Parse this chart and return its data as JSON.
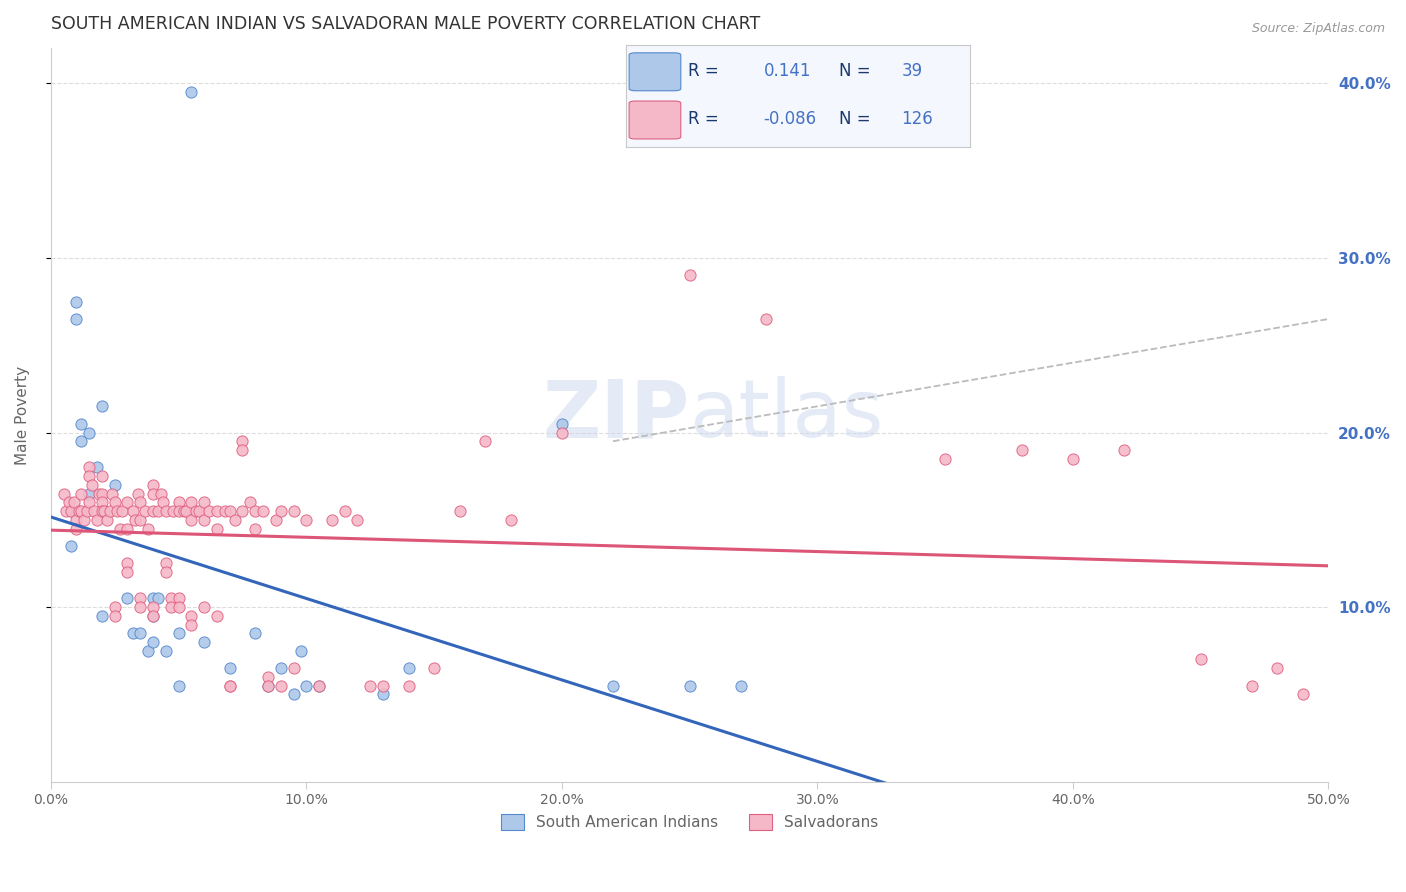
{
  "title": "SOUTH AMERICAN INDIAN VS SALVADORAN MALE POVERTY CORRELATION CHART",
  "source": "Source: ZipAtlas.com",
  "ylabel": "Male Poverty",
  "watermark": "ZIPatlas",
  "blue_r": "0.141",
  "blue_n": "39",
  "pink_r": "-0.086",
  "pink_n": "126",
  "blue_color": "#adc8e8",
  "pink_color": "#f5b8c8",
  "blue_edge_color": "#5588cc",
  "pink_edge_color": "#e06080",
  "blue_line_color": "#3366bb",
  "pink_line_color": "#dd5577",
  "dash_line_color": "#bbbbbb",
  "blue_scatter": [
    [
      0.8,
      15.5
    ],
    [
      0.8,
      13.5
    ],
    [
      1.0,
      27.5
    ],
    [
      1.0,
      26.5
    ],
    [
      1.2,
      20.5
    ],
    [
      1.2,
      19.5
    ],
    [
      1.5,
      20.0
    ],
    [
      1.5,
      16.5
    ],
    [
      1.8,
      18.0
    ],
    [
      2.0,
      21.5
    ],
    [
      2.0,
      9.5
    ],
    [
      2.5,
      17.0
    ],
    [
      3.0,
      10.5
    ],
    [
      3.2,
      8.5
    ],
    [
      3.5,
      8.5
    ],
    [
      3.8,
      7.5
    ],
    [
      4.0,
      8.0
    ],
    [
      4.0,
      9.5
    ],
    [
      4.0,
      10.5
    ],
    [
      4.2,
      10.5
    ],
    [
      4.5,
      7.5
    ],
    [
      5.0,
      8.5
    ],
    [
      5.0,
      5.5
    ],
    [
      5.5,
      39.5
    ],
    [
      6.0,
      8.0
    ],
    [
      7.0,
      6.5
    ],
    [
      8.0,
      8.5
    ],
    [
      8.5,
      5.5
    ],
    [
      9.0,
      6.5
    ],
    [
      9.5,
      5.0
    ],
    [
      9.8,
      7.5
    ],
    [
      10.0,
      5.5
    ],
    [
      10.5,
      5.5
    ],
    [
      13.0,
      5.0
    ],
    [
      14.0,
      6.5
    ],
    [
      20.0,
      20.5
    ],
    [
      22.0,
      5.5
    ],
    [
      25.0,
      5.5
    ],
    [
      27.0,
      5.5
    ]
  ],
  "pink_scatter": [
    [
      0.5,
      16.5
    ],
    [
      0.6,
      15.5
    ],
    [
      0.7,
      16.0
    ],
    [
      0.8,
      15.5
    ],
    [
      0.9,
      16.0
    ],
    [
      1.0,
      15.0
    ],
    [
      1.0,
      14.5
    ],
    [
      1.1,
      15.5
    ],
    [
      1.2,
      16.5
    ],
    [
      1.2,
      15.5
    ],
    [
      1.3,
      15.0
    ],
    [
      1.4,
      15.5
    ],
    [
      1.5,
      18.0
    ],
    [
      1.5,
      17.5
    ],
    [
      1.5,
      16.0
    ],
    [
      1.6,
      17.0
    ],
    [
      1.7,
      15.5
    ],
    [
      1.8,
      15.0
    ],
    [
      1.9,
      16.5
    ],
    [
      2.0,
      17.5
    ],
    [
      2.0,
      16.5
    ],
    [
      2.0,
      16.0
    ],
    [
      2.0,
      15.5
    ],
    [
      2.1,
      15.5
    ],
    [
      2.2,
      15.0
    ],
    [
      2.3,
      15.5
    ],
    [
      2.4,
      16.5
    ],
    [
      2.5,
      16.0
    ],
    [
      2.5,
      10.0
    ],
    [
      2.5,
      9.5
    ],
    [
      2.6,
      15.5
    ],
    [
      2.7,
      14.5
    ],
    [
      2.8,
      15.5
    ],
    [
      3.0,
      16.0
    ],
    [
      3.0,
      14.5
    ],
    [
      3.0,
      12.5
    ],
    [
      3.0,
      12.0
    ],
    [
      3.2,
      15.5
    ],
    [
      3.3,
      15.0
    ],
    [
      3.4,
      16.5
    ],
    [
      3.5,
      16.0
    ],
    [
      3.5,
      15.0
    ],
    [
      3.5,
      10.5
    ],
    [
      3.5,
      10.0
    ],
    [
      3.7,
      15.5
    ],
    [
      3.8,
      14.5
    ],
    [
      4.0,
      17.0
    ],
    [
      4.0,
      16.5
    ],
    [
      4.0,
      15.5
    ],
    [
      4.0,
      10.0
    ],
    [
      4.0,
      9.5
    ],
    [
      4.2,
      15.5
    ],
    [
      4.3,
      16.5
    ],
    [
      4.4,
      16.0
    ],
    [
      4.5,
      15.5
    ],
    [
      4.5,
      12.5
    ],
    [
      4.5,
      12.0
    ],
    [
      4.7,
      10.5
    ],
    [
      4.7,
      10.0
    ],
    [
      4.8,
      15.5
    ],
    [
      5.0,
      16.0
    ],
    [
      5.0,
      15.5
    ],
    [
      5.0,
      10.5
    ],
    [
      5.0,
      10.0
    ],
    [
      5.2,
      15.5
    ],
    [
      5.3,
      15.5
    ],
    [
      5.5,
      16.0
    ],
    [
      5.5,
      15.0
    ],
    [
      5.5,
      9.5
    ],
    [
      5.5,
      9.0
    ],
    [
      5.7,
      15.5
    ],
    [
      5.8,
      15.5
    ],
    [
      6.0,
      16.0
    ],
    [
      6.0,
      15.0
    ],
    [
      6.0,
      10.0
    ],
    [
      6.2,
      15.5
    ],
    [
      6.5,
      15.5
    ],
    [
      6.5,
      14.5
    ],
    [
      6.5,
      9.5
    ],
    [
      6.8,
      15.5
    ],
    [
      7.0,
      15.5
    ],
    [
      7.0,
      5.5
    ],
    [
      7.0,
      5.5
    ],
    [
      7.2,
      15.0
    ],
    [
      7.5,
      19.5
    ],
    [
      7.5,
      19.0
    ],
    [
      7.5,
      15.5
    ],
    [
      7.8,
      16.0
    ],
    [
      8.0,
      15.5
    ],
    [
      8.0,
      14.5
    ],
    [
      8.3,
      15.5
    ],
    [
      8.5,
      6.0
    ],
    [
      8.5,
      5.5
    ],
    [
      8.8,
      15.0
    ],
    [
      9.0,
      15.5
    ],
    [
      9.0,
      5.5
    ],
    [
      9.5,
      15.5
    ],
    [
      9.5,
      6.5
    ],
    [
      10.0,
      15.0
    ],
    [
      10.5,
      5.5
    ],
    [
      11.0,
      15.0
    ],
    [
      11.5,
      15.5
    ],
    [
      12.0,
      15.0
    ],
    [
      12.5,
      5.5
    ],
    [
      13.0,
      5.5
    ],
    [
      14.0,
      5.5
    ],
    [
      15.0,
      6.5
    ],
    [
      16.0,
      15.5
    ],
    [
      17.0,
      19.5
    ],
    [
      18.0,
      15.0
    ],
    [
      20.0,
      20.0
    ],
    [
      25.0,
      29.0
    ],
    [
      28.0,
      26.5
    ],
    [
      35.0,
      18.5
    ],
    [
      38.0,
      19.0
    ],
    [
      40.0,
      18.5
    ],
    [
      42.0,
      19.0
    ],
    [
      45.0,
      7.0
    ],
    [
      47.0,
      5.5
    ],
    [
      48.0,
      6.5
    ],
    [
      49.0,
      5.0
    ]
  ],
  "xlim": [
    0,
    50
  ],
  "ylim": [
    0,
    42
  ],
  "xticks": [
    0,
    10,
    20,
    30,
    40,
    50
  ],
  "xtick_labels": [
    "0.0%",
    "10.0%",
    "20.0%",
    "30.0%",
    "40.0%",
    "50.0%"
  ],
  "yticks": [
    10,
    20,
    30,
    40
  ],
  "ytick_labels_right": [
    "10.0%",
    "20.0%",
    "30.0%",
    "40.0%"
  ],
  "background_color": "#ffffff",
  "grid_color": "#dddddd",
  "title_color": "#333333",
  "label_color": "#666666",
  "right_label_color": "#4472c4",
  "legend_text_dark": "#1a3a6e",
  "legend_text_blue": "#4472c4"
}
